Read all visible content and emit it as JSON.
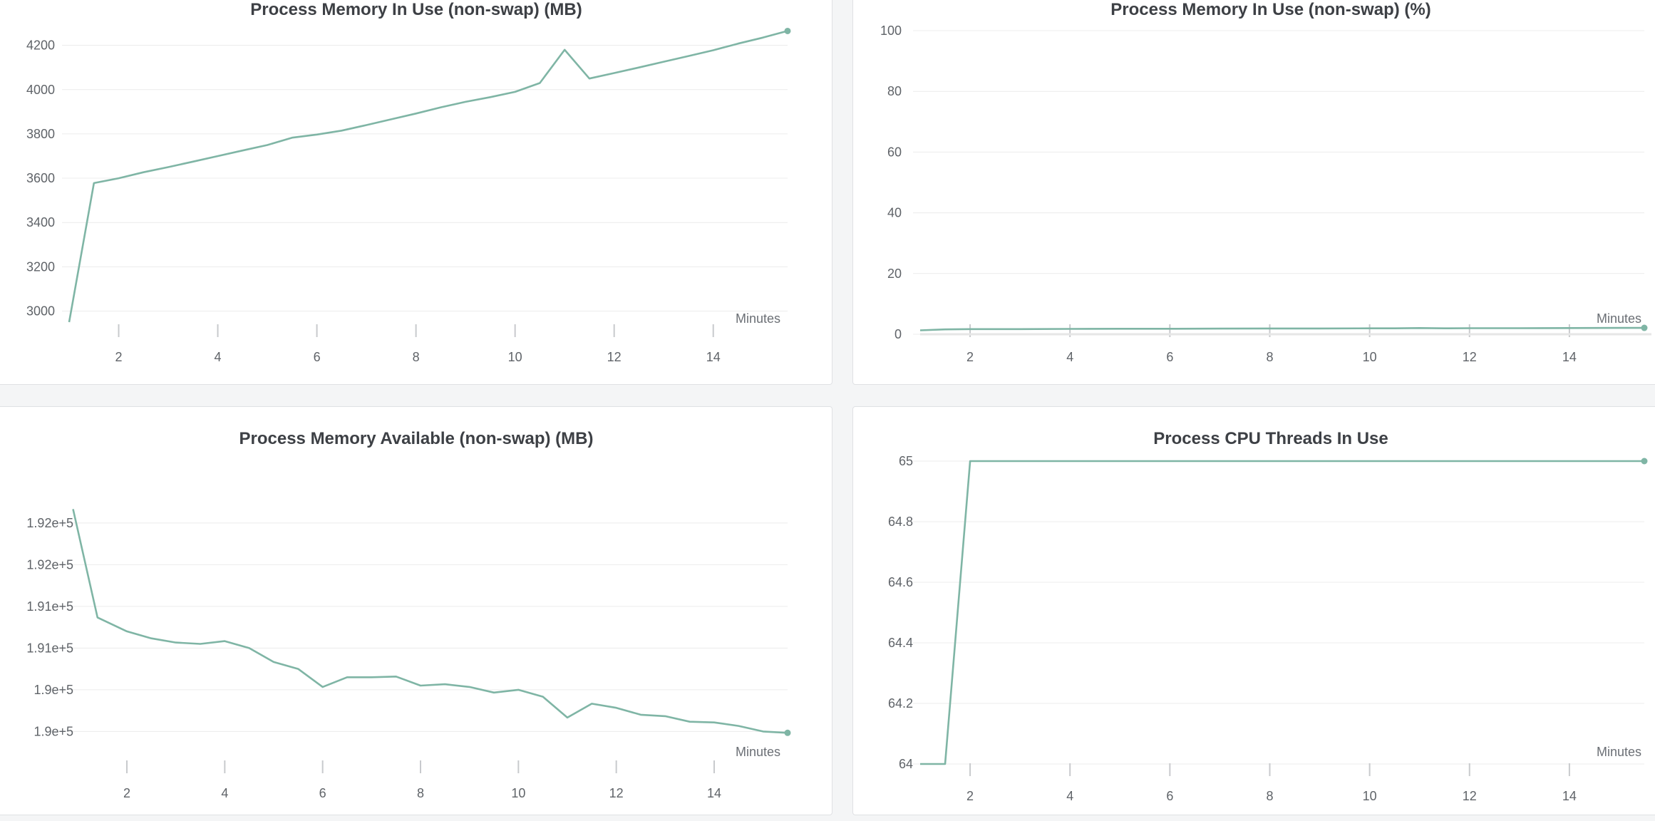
{
  "accent_color": "#7fb5a5",
  "baseline_color": "#e6e6e6",
  "chart_data": [
    {
      "type": "line",
      "title": "Process Memory In Use (non-swap) (MB)",
      "xlabel": "Minutes",
      "ylabel": "",
      "xlim": [
        1,
        15.5
      ],
      "ylim": [
        2950,
        4260
      ],
      "x_ticks": [
        2,
        4,
        6,
        8,
        10,
        12,
        14
      ],
      "y_ticks": [
        3000,
        3200,
        3400,
        3600,
        3800,
        4000,
        4200
      ],
      "y_tick_labels": [
        "3000",
        "3200",
        "3400",
        "3600",
        "3800",
        "4000",
        "4200"
      ],
      "series": [
        {
          "x": [
            1,
            1.5,
            2,
            2.5,
            3,
            3.5,
            4,
            4.5,
            5,
            5.5,
            6,
            6.5,
            7,
            7.5,
            8,
            8.5,
            9,
            9.5,
            10,
            10.5,
            11,
            11.5,
            12,
            12.5,
            13,
            13.5,
            14,
            14.5,
            15,
            15.5
          ],
          "y": [
            2950,
            3578,
            3600,
            3627,
            3650,
            3675,
            3700,
            3725,
            3750,
            3783,
            3797,
            3815,
            3840,
            3866,
            3892,
            3920,
            3945,
            3966,
            3990,
            4030,
            4180,
            4050,
            4075,
            4100,
            4126,
            4152,
            4178,
            4208,
            4235,
            4265
          ]
        }
      ]
    },
    {
      "type": "line",
      "title": "Process Memory In Use (non-swap) (%)",
      "xlabel": "Minutes",
      "ylabel": "",
      "xlim": [
        1,
        15.5
      ],
      "ylim": [
        0,
        100
      ],
      "x_ticks": [
        2,
        4,
        6,
        8,
        10,
        12,
        14
      ],
      "y_ticks": [
        0,
        20,
        40,
        60,
        80,
        100
      ],
      "y_tick_labels": [
        "0",
        "20",
        "40",
        "60",
        "80",
        "100"
      ],
      "series": [
        {
          "x": [
            1,
            1.5,
            2,
            3,
            4,
            5,
            6,
            7,
            8,
            9,
            10,
            10.5,
            11,
            11.5,
            12,
            13,
            14,
            15,
            15.5
          ],
          "y": [
            1.3,
            1.6,
            1.7,
            1.7,
            1.75,
            1.8,
            1.8,
            1.85,
            1.9,
            1.9,
            1.95,
            1.95,
            2.05,
            1.95,
            2.0,
            2.0,
            2.05,
            2.1,
            2.1
          ]
        }
      ]
    },
    {
      "type": "line",
      "title": "Process Memory Available (non-swap) (MB)",
      "xlabel": "Minutes",
      "ylabel": "",
      "xlim": [
        0.5,
        15.5
      ],
      "ylim": [
        189930,
        191930
      ],
      "x_ticks": [
        2,
        4,
        6,
        8,
        10,
        12,
        14
      ],
      "y_ticks": [
        190000,
        190300,
        190600,
        190900,
        191200,
        191500
      ],
      "y_tick_labels": [
        "1.9e+5",
        "1.9e+5",
        "1.91e+5",
        "1.91e+5",
        "1.92e+5",
        "1.92e+5"
      ],
      "series": [
        {
          "x": [
            0.9,
            1.4,
            2.0,
            2.5,
            3.0,
            3.5,
            4.0,
            4.5,
            5.0,
            5.5,
            6.0,
            6.5,
            7.0,
            7.5,
            8.0,
            8.5,
            9.0,
            9.5,
            10.0,
            10.5,
            11.0,
            11.5,
            12.0,
            12.5,
            13.0,
            13.5,
            14.0,
            14.5,
            15.0,
            15.5
          ],
          "y": [
            191600,
            190820,
            190720,
            190670,
            190640,
            190630,
            190650,
            190600,
            190500,
            190450,
            190320,
            190390,
            190390,
            190395,
            190330,
            190340,
            190320,
            190280,
            190300,
            190250,
            190100,
            190200,
            190170,
            190120,
            190110,
            190070,
            190065,
            190040,
            190000,
            189990
          ]
        }
      ]
    },
    {
      "type": "line",
      "title": "Process CPU Threads In Use",
      "xlabel": "Minutes",
      "ylabel": "",
      "xlim": [
        1,
        15.5
      ],
      "ylim": [
        64,
        65
      ],
      "x_ticks": [
        2,
        4,
        6,
        8,
        10,
        12,
        14
      ],
      "y_ticks": [
        64,
        64.2,
        64.4,
        64.6,
        64.8,
        65
      ],
      "y_tick_labels": [
        "64",
        "64.2",
        "64.4",
        "64.6",
        "64.8",
        "65"
      ],
      "series": [
        {
          "x": [
            1,
            1.5,
            2,
            3,
            4,
            5,
            6,
            7,
            8,
            9,
            10,
            11,
            12,
            13,
            14,
            15,
            15.5
          ],
          "y": [
            64,
            64,
            65,
            65,
            65,
            65,
            65,
            65,
            65,
            65,
            65,
            65,
            65,
            65,
            65,
            65,
            65
          ]
        }
      ]
    }
  ]
}
